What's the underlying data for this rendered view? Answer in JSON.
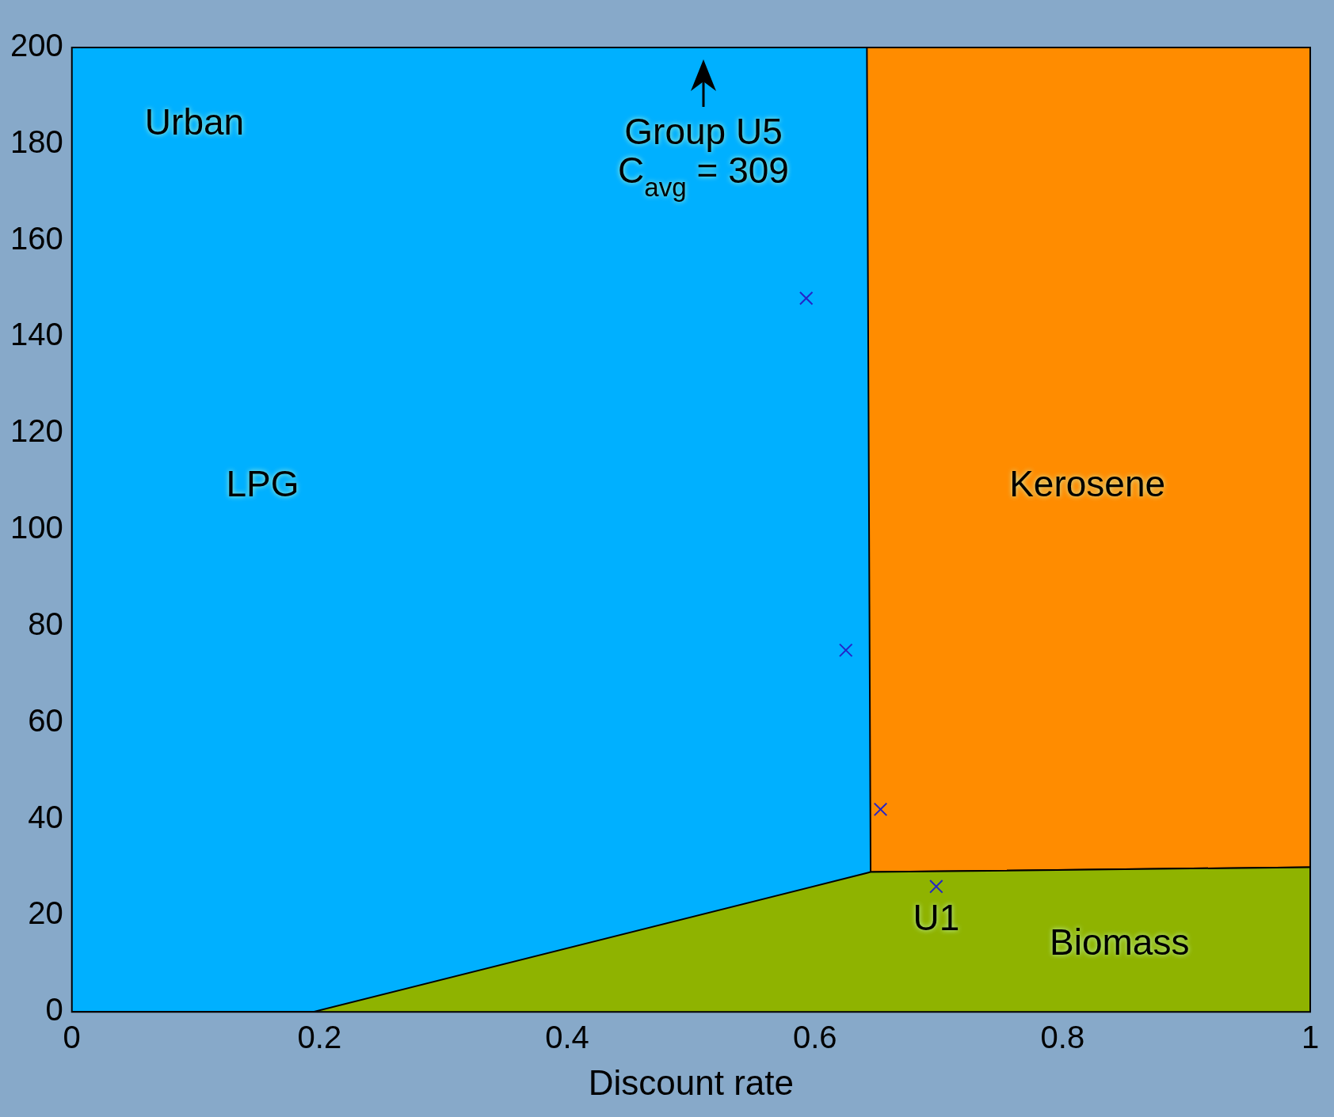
{
  "chart_data": {
    "type": "area",
    "stacked": true,
    "xlabel": "Discount rate",
    "x": [
      0,
      0.195,
      0.642,
      0.645,
      1
    ],
    "series": [
      {
        "color": "#8fb300",
        "values": [
          0,
          0,
          28.8,
          29,
          30
        ]
      },
      {
        "color": "#00b0ff",
        "values": [
          200,
          200,
          171.2,
          0,
          0
        ]
      },
      {
        "color": "#ff8c00",
        "values": [
          0,
          0,
          0,
          171,
          170
        ]
      },
      {
        "type": "scatter",
        "marker": "cross",
        "color": "#2424c8",
        "x": [
          0.593,
          0.625,
          0.653,
          0.698
        ],
        "values": [
          148,
          75,
          42,
          26
        ]
      }
    ],
    "xlim": [
      0,
      1
    ],
    "xticks": [
      0,
      0.2,
      0.4,
      0.6,
      0.8,
      1
    ],
    "ylim": [
      0,
      200
    ],
    "yticks": [
      0,
      20,
      40,
      60,
      80,
      100,
      120,
      140,
      160,
      180,
      200
    ],
    "grid": false,
    "legend": false,
    "annotations": [
      "Urban",
      "LPG",
      "Kerosene",
      "Biomass",
      {
        "text": "U1",
        "x": 0.698,
        "y": 26
      },
      "Group U5",
      "C$_{avg}$ = 309"
    ]
  }
}
